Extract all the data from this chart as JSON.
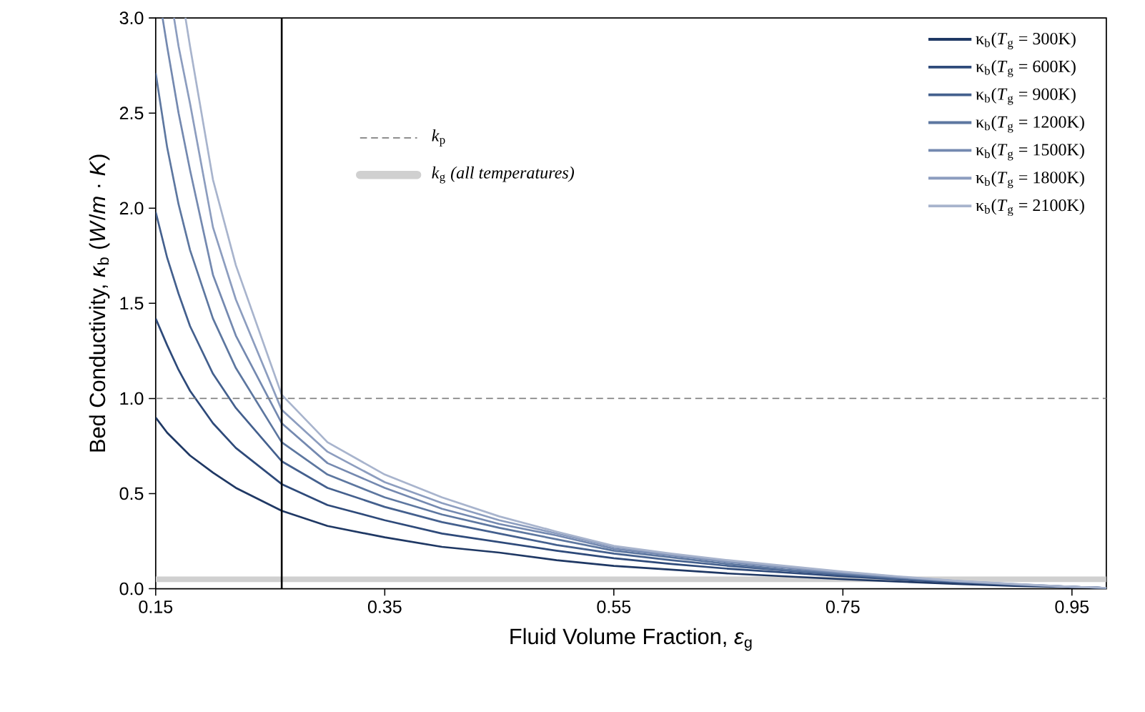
{
  "chart_data": {
    "type": "line",
    "xlabel": "Fluid Volume Fraction, *ε*$_{g}$",
    "ylabel": "Bed Conductivity, *κ*$_{b}$ (*W*/*m* · *K*)",
    "xlim": [
      0.15,
      0.98
    ],
    "ylim": [
      0,
      3.0
    ],
    "xticks": [
      0.15,
      0.35,
      0.55,
      0.75,
      0.95
    ],
    "yticks": [
      {
        "value": 0,
        "label": "0.0"
      },
      {
        "value": 0.5,
        "label": "0.5"
      },
      {
        "value": 1.0,
        "label": "1.0"
      },
      {
        "value": 1.5,
        "label": "1.5"
      },
      {
        "value": 2.0,
        "label": "2.0"
      },
      {
        "value": 2.5,
        "label": "2.5"
      },
      {
        "value": 3.0,
        "label": "3.0"
      }
    ],
    "grid": false,
    "legend": "top right",
    "series": [
      {
        "name": "κ$_{b}$(*T*$_{g}$ = 300K)",
        "color": "#1f3864",
        "x": [
          0.15,
          0.16,
          0.17,
          0.18,
          0.2,
          0.22,
          0.26,
          0.3,
          0.35,
          0.4,
          0.45,
          0.5,
          0.55,
          0.6,
          0.65,
          0.7,
          0.75,
          0.8,
          0.85,
          0.9,
          0.95,
          0.98
        ],
        "values": [
          0.9,
          0.82,
          0.76,
          0.7,
          0.61,
          0.53,
          0.41,
          0.33,
          0.27,
          0.22,
          0.19,
          0.15,
          0.12,
          0.1,
          0.08,
          0.065,
          0.05,
          0.037,
          0.025,
          0.015,
          0.008,
          0.004
        ]
      },
      {
        "name": "κ$_{b}$(*T*$_{g}$ = 600K)",
        "color": "#2e4a7a",
        "x": [
          0.15,
          0.16,
          0.17,
          0.18,
          0.2,
          0.22,
          0.26,
          0.3,
          0.35,
          0.4,
          0.45,
          0.5,
          0.55,
          0.6,
          0.65,
          0.7,
          0.75,
          0.8,
          0.85,
          0.9,
          0.95,
          0.98
        ],
        "values": [
          1.42,
          1.28,
          1.15,
          1.04,
          0.87,
          0.74,
          0.55,
          0.44,
          0.36,
          0.29,
          0.245,
          0.2,
          0.16,
          0.13,
          0.105,
          0.085,
          0.065,
          0.048,
          0.032,
          0.02,
          0.009,
          0.004
        ]
      },
      {
        "name": "κ$_{b}$(*T*$_{g}$ = 900K)",
        "color": "#44608e",
        "x": [
          0.15,
          0.16,
          0.17,
          0.18,
          0.2,
          0.22,
          0.26,
          0.3,
          0.35,
          0.4,
          0.45,
          0.5,
          0.55,
          0.6,
          0.65,
          0.7,
          0.75,
          0.8,
          0.85,
          0.9,
          0.95,
          0.98
        ],
        "values": [
          1.98,
          1.74,
          1.55,
          1.38,
          1.13,
          0.95,
          0.67,
          0.53,
          0.43,
          0.35,
          0.29,
          0.23,
          0.185,
          0.15,
          0.12,
          0.095,
          0.072,
          0.052,
          0.035,
          0.021,
          0.01,
          0.004
        ]
      },
      {
        "name": "κ$_{b}$(*T*$_{g}$ = 1200K)",
        "color": "#5d77a0",
        "x": [
          0.15,
          0.16,
          0.17,
          0.18,
          0.2,
          0.22,
          0.26,
          0.3,
          0.35,
          0.4,
          0.45,
          0.5,
          0.55,
          0.6,
          0.65,
          0.7,
          0.75,
          0.8,
          0.85,
          0.9,
          0.95,
          0.98
        ],
        "values": [
          2.71,
          2.32,
          2.02,
          1.78,
          1.42,
          1.16,
          0.77,
          0.6,
          0.48,
          0.39,
          0.32,
          0.26,
          0.2,
          0.165,
          0.13,
          0.1,
          0.078,
          0.056,
          0.037,
          0.022,
          0.01,
          0.004
        ]
      },
      {
        "name": "κ$_{b}$(*T*$_{g}$ = 1500K)",
        "color": "#7489b0",
        "x": [
          0.156,
          0.16,
          0.17,
          0.18,
          0.2,
          0.22,
          0.26,
          0.3,
          0.35,
          0.4,
          0.45,
          0.5,
          0.55,
          0.6,
          0.65,
          0.7,
          0.75,
          0.8,
          0.85,
          0.9,
          0.95,
          0.98
        ],
        "values": [
          3.0,
          2.85,
          2.5,
          2.2,
          1.65,
          1.33,
          0.87,
          0.66,
          0.53,
          0.42,
          0.34,
          0.28,
          0.21,
          0.175,
          0.14,
          0.11,
          0.083,
          0.06,
          0.039,
          0.023,
          0.01,
          0.004
        ]
      },
      {
        "name": "κ$_{b}$(*T*$_{g}$ = 1800K)",
        "color": "#8c9dbf",
        "x": [
          0.166,
          0.17,
          0.18,
          0.2,
          0.22,
          0.26,
          0.3,
          0.35,
          0.4,
          0.45,
          0.5,
          0.55,
          0.6,
          0.65,
          0.7,
          0.75,
          0.8,
          0.85,
          0.9,
          0.95,
          0.98
        ],
        "values": [
          3.0,
          2.85,
          2.55,
          1.9,
          1.52,
          0.94,
          0.72,
          0.56,
          0.45,
          0.36,
          0.29,
          0.22,
          0.18,
          0.145,
          0.115,
          0.087,
          0.062,
          0.04,
          0.024,
          0.01,
          0.004
        ]
      },
      {
        "name": "κ$_{b}$(*T*$_{g}$ = 2100K)",
        "color": "#a8b4cd",
        "x": [
          0.176,
          0.18,
          0.2,
          0.22,
          0.26,
          0.3,
          0.35,
          0.4,
          0.45,
          0.5,
          0.55,
          0.6,
          0.65,
          0.7,
          0.75,
          0.8,
          0.85,
          0.9,
          0.95,
          0.98
        ],
        "values": [
          3.0,
          2.85,
          2.15,
          1.7,
          1.02,
          0.77,
          0.6,
          0.48,
          0.38,
          0.3,
          0.225,
          0.185,
          0.15,
          0.12,
          0.09,
          0.064,
          0.041,
          0.025,
          0.01,
          0.004
        ]
      }
    ],
    "ref_lines": [
      {
        "axis": "y",
        "value": 1.0,
        "label": "*k*$_{p}$",
        "color": "#808080",
        "line_style": "dashed"
      },
      {
        "axis": "x",
        "value": 0.26,
        "color": "#000000",
        "line_style": "solid"
      }
    ],
    "bands": [
      {
        "axis": "y",
        "from": 0.035,
        "to": 0.065,
        "label": "*k*$_{g}$ *(all temperatures)*",
        "color": "#d0d0d0"
      }
    ]
  }
}
